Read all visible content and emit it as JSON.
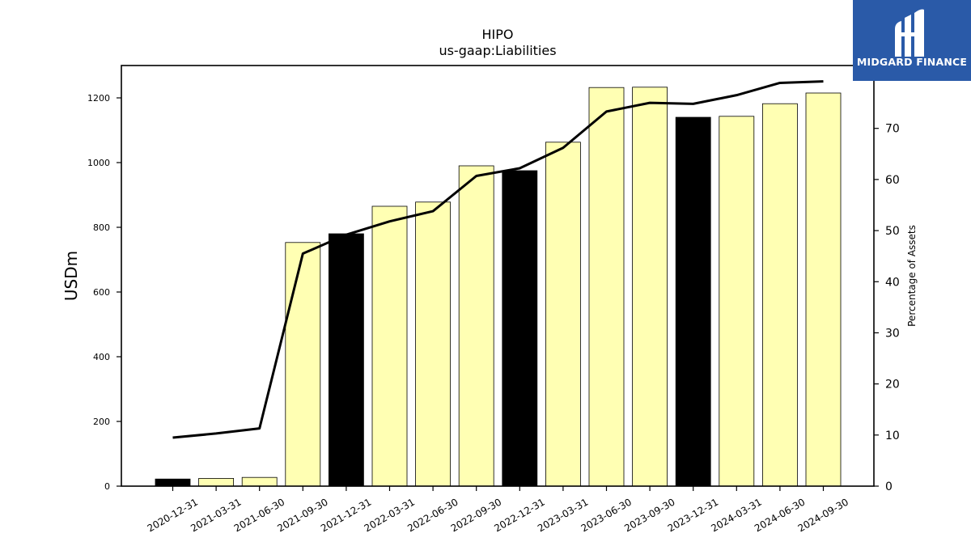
{
  "brand": {
    "name": "MIDGARD FINANCE",
    "logo_icon": "midgard-m-icon",
    "color": "#2a5aa8"
  },
  "chart_data": {
    "type": "bar",
    "title": "HIPO",
    "subtitle": "us-gaap:Liabilities",
    "ylabel": "USDm",
    "y2label": "Percentage of Assets",
    "categories": [
      "2020-12-31",
      "2021-03-31",
      "2021-06-30",
      "2021-09-30",
      "2021-12-31",
      "2022-03-31",
      "2022-06-30",
      "2022-09-30",
      "2022-12-31",
      "2023-03-31",
      "2023-06-30",
      "2023-09-30",
      "2023-12-31",
      "2024-03-31",
      "2024-06-30",
      "2024-09-30"
    ],
    "values": [
      22,
      24,
      27,
      753,
      780,
      865,
      878,
      990,
      975,
      1063,
      1232,
      1233,
      1140,
      1143,
      1182,
      1215
    ],
    "bar_colors": [
      "#000000",
      "#ffffb3",
      "#ffffb3",
      "#ffffb3",
      "#000000",
      "#ffffb3",
      "#ffffb3",
      "#ffffb3",
      "#000000",
      "#ffffb3",
      "#ffffb3",
      "#ffffb3",
      "#000000",
      "#ffffb3",
      "#ffffb3",
      "#ffffb3"
    ],
    "line_series": {
      "values": [
        9.5,
        10.3,
        11.3,
        45.5,
        49.2,
        51.8,
        53.8,
        60.7,
        62.2,
        66.2,
        73.3,
        75.0,
        74.8,
        76.5,
        78.9,
        79.2
      ],
      "color": "#000000"
    },
    "yticks": [
      "0",
      "200",
      "400",
      "600",
      "800",
      "1000",
      "1200"
    ],
    "y2ticks": [
      "0",
      "10",
      "20",
      "30",
      "40",
      "50",
      "60",
      "70"
    ],
    "ylim": [
      0,
      1300
    ],
    "y2lim": [
      0,
      82.3
    ],
    "grid": false,
    "legend": "none"
  }
}
